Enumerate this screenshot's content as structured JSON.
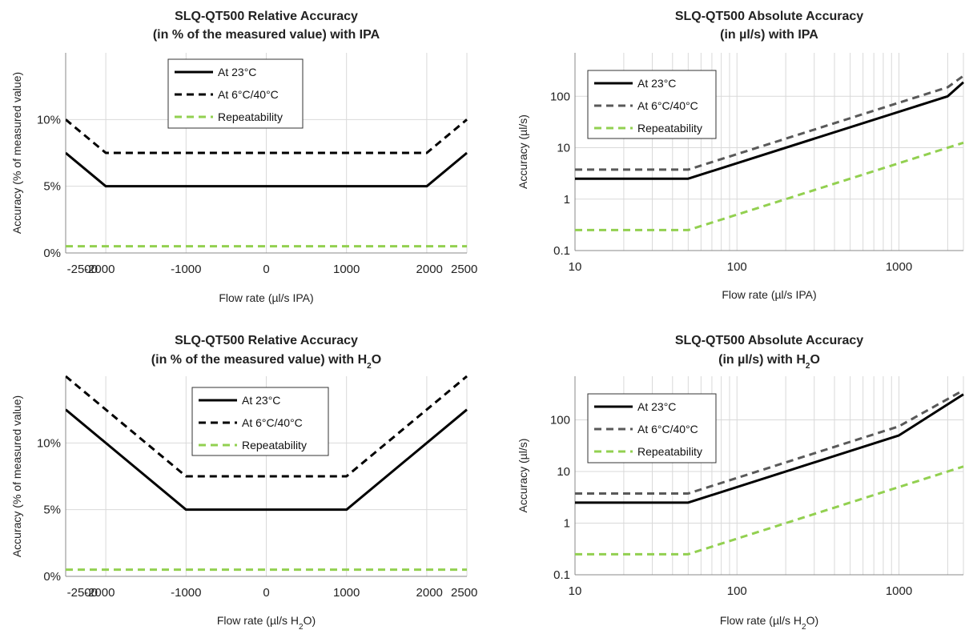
{
  "chart_data": [
    {
      "type": "line",
      "title": [
        "SLQ-QT500 Relative Accuracy",
        "(in % of the measured value) with IPA"
      ],
      "xlabel": "Flow rate (µl/s IPA)",
      "ylabel": "Accuracy (% of measured value)",
      "x_scale": "linear",
      "y_scale": "linear",
      "xlim": [
        -2500,
        2500
      ],
      "ylim": [
        0,
        15
      ],
      "x_ticks": [
        -2500,
        -2000,
        -1000,
        0,
        1000,
        2000,
        2500
      ],
      "x_tick_labels": [
        "-2500",
        "-2000",
        "-1000",
        "0",
        "1000",
        "2000",
        "2500"
      ],
      "y_ticks": [
        0,
        5,
        10
      ],
      "y_tick_labels": [
        "0%",
        "5%",
        "10%"
      ],
      "grid": true,
      "legend_position": "top-center",
      "series": [
        {
          "name": "At 23°C",
          "style": "solid",
          "color": "#000000",
          "x": [
            -2500,
            -2000,
            2000,
            2500
          ],
          "y": [
            7.5,
            5,
            5,
            7.5
          ]
        },
        {
          "name": "At 6°C/40°C",
          "style": "dashed",
          "color": "#000000",
          "x": [
            -2500,
            -2000,
            2000,
            2500
          ],
          "y": [
            10,
            7.5,
            7.5,
            10
          ]
        },
        {
          "name": "Repeatability",
          "style": "dashed",
          "color": "#92d050",
          "x": [
            -2500,
            2500
          ],
          "y": [
            0.5,
            0.5
          ]
        }
      ]
    },
    {
      "type": "line",
      "title": [
        "SLQ-QT500 Absolute Accuracy",
        "(in µl/s) with IPA"
      ],
      "xlabel": "Flow rate (µl/s IPA)",
      "ylabel": "Accuracy (µl/s)",
      "x_scale": "log",
      "y_scale": "log",
      "xlim": [
        10,
        2500
      ],
      "ylim": [
        0.1,
        700
      ],
      "x_ticks": [
        10,
        100,
        1000
      ],
      "x_tick_labels": [
        "10",
        "100",
        "1000"
      ],
      "y_ticks": [
        0.1,
        1,
        10,
        100
      ],
      "y_tick_labels": [
        "0.1",
        "1",
        "10",
        "100"
      ],
      "grid": true,
      "legend_position": "top-left",
      "series": [
        {
          "name": "At 23°C",
          "style": "solid",
          "color": "#000000",
          "x": [
            10,
            50,
            2000,
            2500
          ],
          "y": [
            2.5,
            2.5,
            100,
            187.5
          ]
        },
        {
          "name": "At 6°C/40°C",
          "style": "dashed",
          "color": "#595959",
          "x": [
            10,
            50,
            2000,
            2500
          ],
          "y": [
            3.75,
            3.75,
            150,
            250
          ]
        },
        {
          "name": "Repeatability",
          "style": "dashed",
          "color": "#92d050",
          "x": [
            10,
            50,
            2500
          ],
          "y": [
            0.25,
            0.25,
            12.5
          ]
        }
      ]
    },
    {
      "type": "line",
      "title": [
        "SLQ-QT500 Relative Accuracy",
        "(in % of the measured value) with H",
        "2",
        "O"
      ],
      "xlabel": [
        "Flow rate (µl/s H",
        "2",
        "O)"
      ],
      "ylabel": "Accuracy (% of measured value)",
      "x_scale": "linear",
      "y_scale": "linear",
      "xlim": [
        -2500,
        2500
      ],
      "ylim": [
        0,
        15
      ],
      "x_ticks": [
        -2500,
        -2000,
        -1000,
        0,
        1000,
        2000,
        2500
      ],
      "x_tick_labels": [
        "-2500",
        "-2000",
        "-1000",
        "0",
        "1000",
        "2000",
        "2500"
      ],
      "y_ticks": [
        0,
        5,
        10
      ],
      "y_tick_labels": [
        "0%",
        "5%",
        "10%"
      ],
      "grid": true,
      "legend_position": "top-center",
      "series": [
        {
          "name": "At 23°C",
          "style": "solid",
          "color": "#000000",
          "x": [
            -2500,
            -1000,
            1000,
            2500
          ],
          "y": [
            12.5,
            5,
            5,
            12.5
          ]
        },
        {
          "name": "At 6°C/40°C",
          "style": "dashed",
          "color": "#000000",
          "x": [
            -2500,
            -1000,
            1000,
            2500
          ],
          "y": [
            15,
            7.5,
            7.5,
            15
          ]
        },
        {
          "name": "Repeatability",
          "style": "dashed",
          "color": "#92d050",
          "x": [
            -2500,
            2500
          ],
          "y": [
            0.5,
            0.5
          ]
        }
      ]
    },
    {
      "type": "line",
      "title": [
        "SLQ-QT500 Absolute Accuracy",
        "(in µl/s) with H",
        "2",
        "O"
      ],
      "xlabel": [
        "Flow rate (µl/s H",
        "2",
        "O)"
      ],
      "ylabel": "Accuracy (µl/s)",
      "x_scale": "log",
      "y_scale": "log",
      "xlim": [
        10,
        2500
      ],
      "ylim": [
        0.1,
        700
      ],
      "x_ticks": [
        10,
        100,
        1000
      ],
      "x_tick_labels": [
        "10",
        "100",
        "1000"
      ],
      "y_ticks": [
        0.1,
        1,
        10,
        100
      ],
      "y_tick_labels": [
        "0.1",
        "1",
        "10",
        "100"
      ],
      "grid": true,
      "legend_position": "top-left",
      "series": [
        {
          "name": "At 23°C",
          "style": "solid",
          "color": "#000000",
          "x": [
            10,
            50,
            1000,
            2500
          ],
          "y": [
            2.5,
            2.5,
            50,
            312.5
          ]
        },
        {
          "name": "At 6°C/40°C",
          "style": "dashed",
          "color": "#595959",
          "x": [
            10,
            50,
            1000,
            2500
          ],
          "y": [
            3.75,
            3.75,
            75,
            375
          ]
        },
        {
          "name": "Repeatability",
          "style": "dashed",
          "color": "#92d050",
          "x": [
            10,
            50,
            2500
          ],
          "y": [
            0.25,
            0.25,
            12.5
          ]
        }
      ]
    }
  ]
}
